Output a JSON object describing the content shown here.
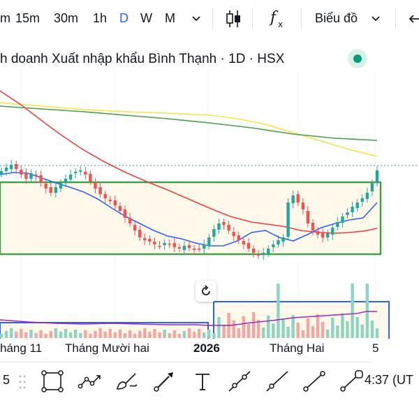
{
  "toolbar": {
    "timeframes": [
      "m",
      "15m",
      "30m",
      "1h",
      "D",
      "W",
      "M"
    ],
    "active_timeframe": "D",
    "chart_type_label": "Biểu đồ",
    "icons": [
      "chevron-down-icon",
      "candlestick-icon",
      "indicators-fx-icon",
      "chevron-down-icon",
      "undo-icon"
    ]
  },
  "legend": {
    "title": "h doanh Xuất nhập khẩu Bình Thạnh · 1D · HSX",
    "market_status_color": "#089981"
  },
  "time_axis": {
    "labels": [
      "háng 11",
      "Tháng Mười hai",
      "2026",
      "Tháng Hai",
      "5"
    ]
  },
  "colors": {
    "up": "#26a69a",
    "down": "#ef5350",
    "ma_fast": "#2962ff",
    "ma_mid": "#ef3f3f",
    "ma_slow_green": "#43a047",
    "ma_slow_yellow": "#f5e447",
    "range_box": "#43a047",
    "volume_box": "#2962ff"
  },
  "drawing_tools": [
    "rectangle-icon",
    "path-icon",
    "brush-icon",
    "pencil-icon",
    "text-icon",
    "trend-angle-icon",
    "ray-icon",
    "trend-line-icon",
    "extended-line-icon"
  ],
  "bottom_bar": {
    "left_number": "5",
    "clock": "4:37 (UT"
  }
}
